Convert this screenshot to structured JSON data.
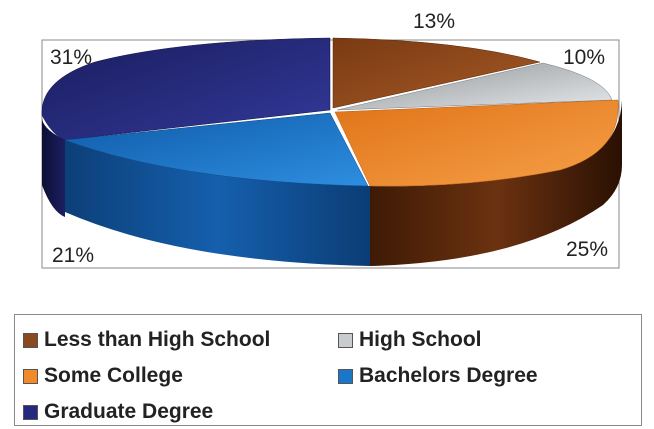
{
  "chart_data": {
    "type": "pie",
    "title": "",
    "categories": [
      "Less than High School",
      "High School",
      "Some College",
      "Bachelors Degree",
      "Graduate Degree"
    ],
    "values": [
      13,
      10,
      25,
      21,
      31
    ],
    "labels": [
      "13%",
      "10%",
      "25%",
      "21%",
      "31%"
    ],
    "colors": [
      "#8b4a1e",
      "#c8cccf",
      "#f08a2a",
      "#1a76c9",
      "#252a80"
    ],
    "legend_position": "bottom",
    "style": "3d-exploded"
  }
}
